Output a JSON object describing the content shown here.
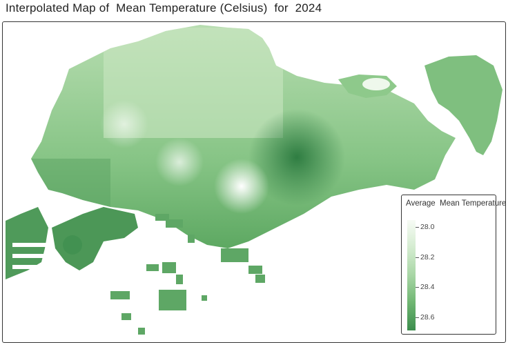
{
  "title": "Interpolated Map of  Mean Temperature (Celsius)  for  2024",
  "legend": {
    "title": "Average  Mean Temperature",
    "ticks": [
      "28.0",
      "28.2",
      "28.4",
      "28.6"
    ]
  },
  "colors": {
    "low": "#f7fbf5",
    "mid": "#8fc68d",
    "high": "#3c8d4d",
    "frame": "#333333"
  }
}
